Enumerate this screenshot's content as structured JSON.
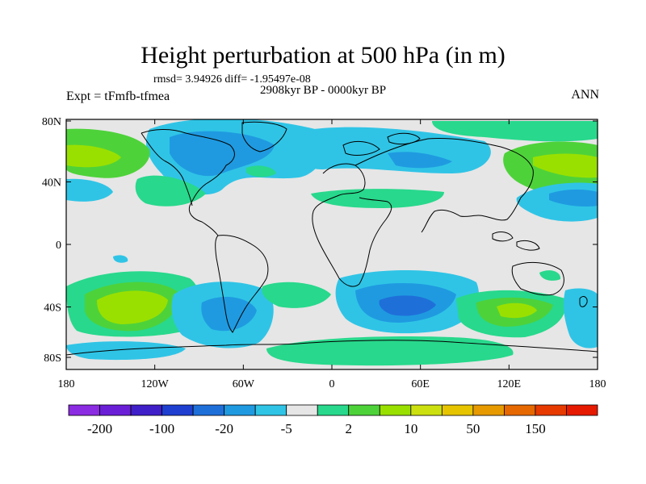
{
  "title": "Height perturbation at 500 hPa (in m)",
  "stats": "rmsd= 3.94926 diff= -1.95497e-08",
  "experiment": "Expt = tFmfb-tfmea",
  "period": "2908kyr BP - 0000kyr BP",
  "season": "ANN",
  "axes": {
    "lat_ticks": [
      "80N",
      "40N",
      "0",
      "40S",
      "80S"
    ],
    "lon_ticks": [
      "180",
      "120W",
      "60W",
      "0",
      "60E",
      "120E",
      "180"
    ]
  },
  "colorbar": {
    "colors": [
      "#8b2be2",
      "#6a1fd6",
      "#3f1fc8",
      "#1f3fd0",
      "#1f6fd9",
      "#1f9ae0",
      "#2fc4e6",
      "#e6e6e6",
      "#28d88c",
      "#4ed23a",
      "#99e000",
      "#cce010",
      "#e6c400",
      "#e69a00",
      "#e66800",
      "#e63a00",
      "#e61a00"
    ],
    "labels": [
      "-200",
      "-100",
      "-20",
      "-5",
      "2",
      "10",
      "50",
      "150"
    ]
  },
  "colors": {
    "background_field": "#e6e6e6",
    "coast": "#000000"
  }
}
